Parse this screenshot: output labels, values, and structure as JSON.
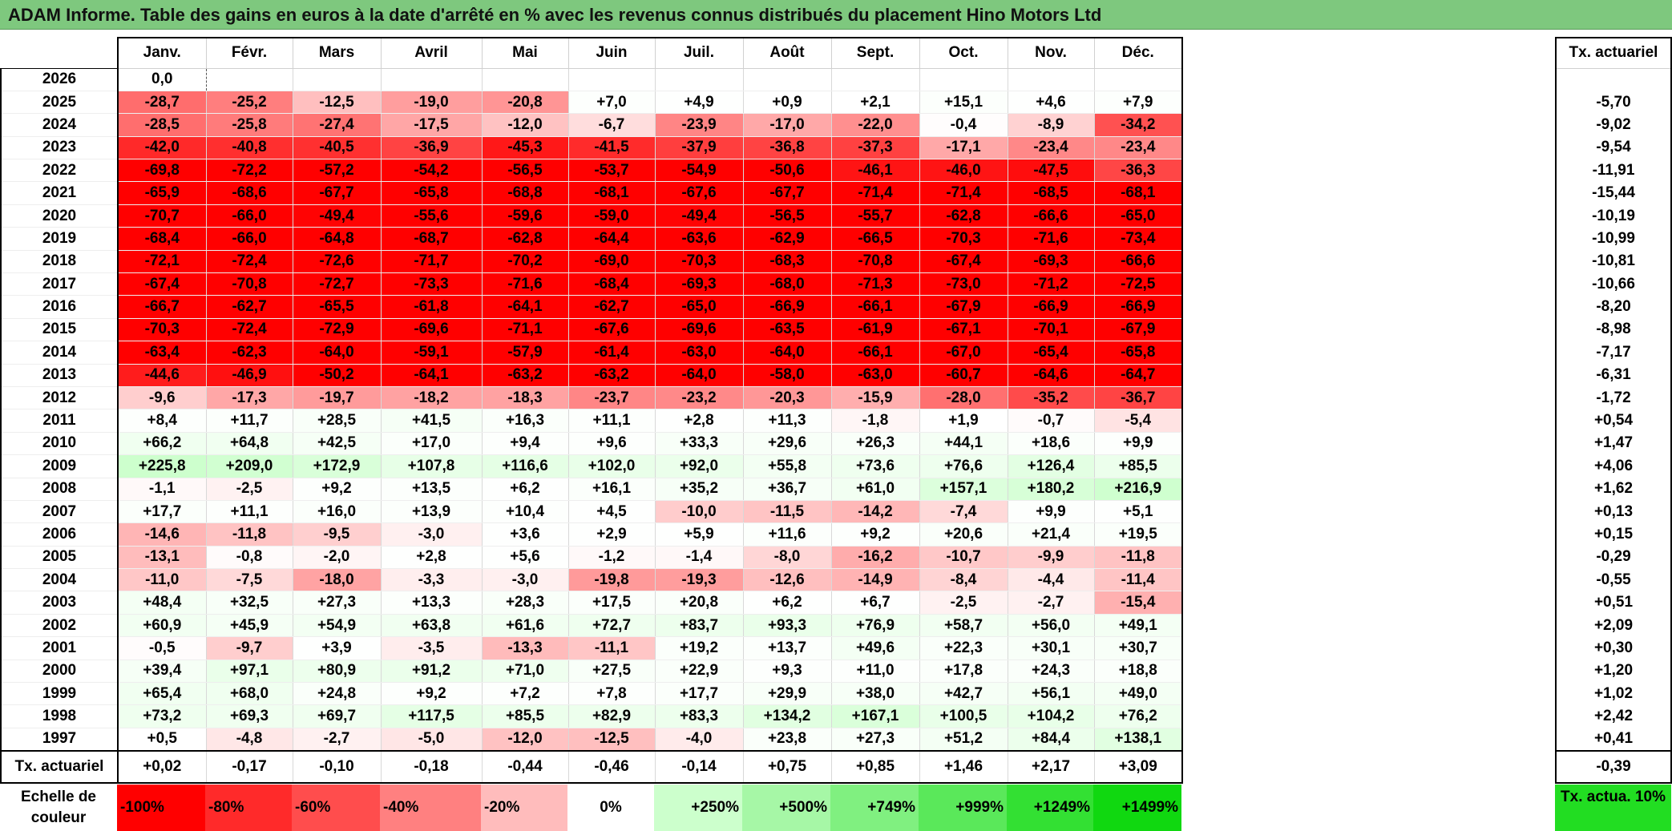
{
  "title": "ADAM Informe. Table des gains en euros à la date d'arrêté en % avec les revenus connus distribués du placement Hino Motors Ltd",
  "months": [
    "Janv.",
    "Févr.",
    "Mars",
    "Avril",
    "Mai",
    "Juin",
    "Juil.",
    "Août",
    "Sept.",
    "Oct.",
    "Nov.",
    "Déc."
  ],
  "side_header": "Tx. actuariel",
  "rows": [
    {
      "year": "2026",
      "values": [
        "0,0",
        "",
        "",
        "",
        "",
        "",
        "",
        "",
        "",
        "",
        "",
        ""
      ],
      "rate": ""
    },
    {
      "year": "2025",
      "values": [
        "-28,7",
        "-25,2",
        "-12,5",
        "-19,0",
        "-20,8",
        "+7,0",
        "+4,9",
        "+0,9",
        "+2,1",
        "+15,1",
        "+4,6",
        "+7,9"
      ],
      "rate": "-5,70"
    },
    {
      "year": "2024",
      "values": [
        "-28,5",
        "-25,8",
        "-27,4",
        "-17,5",
        "-12,0",
        "-6,7",
        "-23,9",
        "-17,0",
        "-22,0",
        "-0,4",
        "-8,9",
        "-34,2"
      ],
      "rate": "-9,02"
    },
    {
      "year": "2023",
      "values": [
        "-42,0",
        "-40,8",
        "-40,5",
        "-36,9",
        "-45,3",
        "-41,5",
        "-37,9",
        "-36,8",
        "-37,3",
        "-17,1",
        "-23,4",
        "-23,4"
      ],
      "rate": "-9,54"
    },
    {
      "year": "2022",
      "values": [
        "-69,8",
        "-72,2",
        "-57,2",
        "-54,2",
        "-56,5",
        "-53,7",
        "-54,9",
        "-50,6",
        "-46,1",
        "-46,0",
        "-47,5",
        "-36,3"
      ],
      "rate": "-11,91"
    },
    {
      "year": "2021",
      "values": [
        "-65,9",
        "-68,6",
        "-67,7",
        "-65,8",
        "-68,8",
        "-68,1",
        "-67,6",
        "-67,7",
        "-71,4",
        "-71,4",
        "-68,5",
        "-68,1"
      ],
      "rate": "-15,44"
    },
    {
      "year": "2020",
      "values": [
        "-70,7",
        "-66,0",
        "-49,4",
        "-55,6",
        "-59,6",
        "-59,0",
        "-49,4",
        "-56,5",
        "-55,7",
        "-62,8",
        "-66,6",
        "-65,0"
      ],
      "rate": "-10,19"
    },
    {
      "year": "2019",
      "values": [
        "-68,4",
        "-66,0",
        "-64,8",
        "-68,7",
        "-62,8",
        "-64,4",
        "-63,6",
        "-62,9",
        "-66,5",
        "-70,3",
        "-71,6",
        "-73,4"
      ],
      "rate": "-10,99"
    },
    {
      "year": "2018",
      "values": [
        "-72,1",
        "-72,4",
        "-72,6",
        "-71,7",
        "-70,2",
        "-69,0",
        "-70,3",
        "-68,3",
        "-70,8",
        "-67,4",
        "-69,3",
        "-66,6"
      ],
      "rate": "-10,81"
    },
    {
      "year": "2017",
      "values": [
        "-67,4",
        "-70,8",
        "-72,7",
        "-73,3",
        "-71,6",
        "-68,4",
        "-69,3",
        "-68,0",
        "-71,3",
        "-73,0",
        "-71,2",
        "-72,5"
      ],
      "rate": "-10,66"
    },
    {
      "year": "2016",
      "values": [
        "-66,7",
        "-62,7",
        "-65,5",
        "-61,8",
        "-64,1",
        "-62,7",
        "-65,0",
        "-66,9",
        "-66,1",
        "-67,9",
        "-66,9",
        "-66,9"
      ],
      "rate": "-8,20"
    },
    {
      "year": "2015",
      "values": [
        "-70,3",
        "-72,4",
        "-72,9",
        "-69,6",
        "-71,1",
        "-67,6",
        "-69,6",
        "-63,5",
        "-61,9",
        "-67,1",
        "-70,1",
        "-67,9"
      ],
      "rate": "-8,98"
    },
    {
      "year": "2014",
      "values": [
        "-63,4",
        "-62,3",
        "-64,0",
        "-59,1",
        "-57,9",
        "-61,4",
        "-63,0",
        "-64,0",
        "-66,1",
        "-67,0",
        "-65,4",
        "-65,8"
      ],
      "rate": "-7,17"
    },
    {
      "year": "2013",
      "values": [
        "-44,6",
        "-46,9",
        "-50,2",
        "-64,1",
        "-63,2",
        "-63,2",
        "-64,0",
        "-58,0",
        "-63,0",
        "-60,7",
        "-64,6",
        "-64,7"
      ],
      "rate": "-6,31"
    },
    {
      "year": "2012",
      "values": [
        "-9,6",
        "-17,3",
        "-19,7",
        "-18,2",
        "-18,3",
        "-23,7",
        "-23,2",
        "-20,3",
        "-15,9",
        "-28,0",
        "-35,2",
        "-36,7"
      ],
      "rate": "-1,72"
    },
    {
      "year": "2011",
      "values": [
        "+8,4",
        "+11,7",
        "+28,5",
        "+41,5",
        "+16,3",
        "+11,1",
        "+2,8",
        "+11,3",
        "-1,8",
        "+1,9",
        "-0,7",
        "-5,4"
      ],
      "rate": "+0,54"
    },
    {
      "year": "2010",
      "values": [
        "+66,2",
        "+64,8",
        "+42,5",
        "+17,0",
        "+9,4",
        "+9,6",
        "+33,3",
        "+29,6",
        "+26,3",
        "+44,1",
        "+18,6",
        "+9,9"
      ],
      "rate": "+1,47"
    },
    {
      "year": "2009",
      "values": [
        "+225,8",
        "+209,0",
        "+172,9",
        "+107,8",
        "+116,6",
        "+102,0",
        "+92,0",
        "+55,8",
        "+73,6",
        "+76,6",
        "+126,4",
        "+85,5"
      ],
      "rate": "+4,06"
    },
    {
      "year": "2008",
      "values": [
        "-1,1",
        "-2,5",
        "+9,2",
        "+13,5",
        "+6,2",
        "+16,1",
        "+35,2",
        "+36,7",
        "+61,0",
        "+157,1",
        "+180,2",
        "+216,9"
      ],
      "rate": "+1,62"
    },
    {
      "year": "2007",
      "values": [
        "+17,7",
        "+11,1",
        "+16,0",
        "+13,9",
        "+10,4",
        "+4,5",
        "-10,0",
        "-11,5",
        "-14,2",
        "-7,4",
        "+9,9",
        "+5,1"
      ],
      "rate": "+0,13"
    },
    {
      "year": "2006",
      "values": [
        "-14,6",
        "-11,8",
        "-9,5",
        "-3,0",
        "+3,6",
        "+2,9",
        "+5,9",
        "+11,6",
        "+9,2",
        "+20,6",
        "+21,4",
        "+19,5"
      ],
      "rate": "+0,15"
    },
    {
      "year": "2005",
      "values": [
        "-13,1",
        "-0,8",
        "-2,0",
        "+2,8",
        "+5,6",
        "-1,2",
        "-1,4",
        "-8,0",
        "-16,2",
        "-10,7",
        "-9,9",
        "-11,8"
      ],
      "rate": "-0,29"
    },
    {
      "year": "2004",
      "values": [
        "-11,0",
        "-7,5",
        "-18,0",
        "-3,3",
        "-3,0",
        "-19,8",
        "-19,3",
        "-12,6",
        "-14,9",
        "-8,4",
        "-4,4",
        "-11,4"
      ],
      "rate": "-0,55"
    },
    {
      "year": "2003",
      "values": [
        "+48,4",
        "+32,5",
        "+27,3",
        "+13,3",
        "+28,3",
        "+17,5",
        "+20,8",
        "+6,2",
        "+6,7",
        "-2,5",
        "-2,7",
        "-15,4"
      ],
      "rate": "+0,51"
    },
    {
      "year": "2002",
      "values": [
        "+60,9",
        "+45,9",
        "+54,9",
        "+63,8",
        "+61,6",
        "+72,7",
        "+83,7",
        "+93,3",
        "+76,9",
        "+58,7",
        "+56,0",
        "+49,1"
      ],
      "rate": "+2,09"
    },
    {
      "year": "2001",
      "values": [
        "-0,5",
        "-9,7",
        "+3,9",
        "-3,5",
        "-13,3",
        "-11,1",
        "+19,2",
        "+13,7",
        "+49,6",
        "+22,3",
        "+30,1",
        "+30,7"
      ],
      "rate": "+0,30"
    },
    {
      "year": "2000",
      "values": [
        "+39,4",
        "+97,1",
        "+80,9",
        "+91,2",
        "+71,0",
        "+27,5",
        "+22,9",
        "+9,3",
        "+11,0",
        "+17,8",
        "+24,3",
        "+18,8"
      ],
      "rate": "+1,20"
    },
    {
      "year": "1999",
      "values": [
        "+65,4",
        "+68,0",
        "+24,8",
        "+9,2",
        "+7,2",
        "+7,8",
        "+17,7",
        "+29,9",
        "+38,0",
        "+42,7",
        "+56,1",
        "+49,0"
      ],
      "rate": "+1,02"
    },
    {
      "year": "1998",
      "values": [
        "+73,2",
        "+69,3",
        "+69,7",
        "+117,5",
        "+85,5",
        "+82,9",
        "+83,3",
        "+134,2",
        "+167,1",
        "+100,5",
        "+104,2",
        "+76,2"
      ],
      "rate": "+2,42"
    },
    {
      "year": "1997",
      "values": [
        "+0,5",
        "-4,8",
        "-2,7",
        "-5,0",
        "-12,0",
        "-12,5",
        "-4,0",
        "+23,8",
        "+27,3",
        "+51,2",
        "+84,4",
        "+138,1"
      ],
      "rate": "+0,41"
    }
  ],
  "summary": {
    "label": "Tx. actuariel",
    "values": [
      "+0,02",
      "-0,17",
      "-0,10",
      "-0,18",
      "-0,44",
      "-0,46",
      "-0,14",
      "+0,75",
      "+0,85",
      "+1,46",
      "+2,17",
      "+3,09"
    ],
    "rate": "-0,39"
  },
  "scale": {
    "label": "Echelle de couleur",
    "items": [
      {
        "text": "-100%",
        "color": "#ff0000",
        "align": "left"
      },
      {
        "text": "-80%",
        "color": "#ff2a2a",
        "align": "left"
      },
      {
        "text": "-60%",
        "color": "#ff4d4d",
        "align": "left"
      },
      {
        "text": "-40%",
        "color": "#ff8080",
        "align": "left"
      },
      {
        "text": "-20%",
        "color": "#ffbcbc",
        "align": "left"
      },
      {
        "text": "0%",
        "color": "#ffffff",
        "align": "center"
      },
      {
        "text": "+250%",
        "color": "#ccffcc",
        "align": "right"
      },
      {
        "text": "+500%",
        "color": "#a6f7a6",
        "align": "right"
      },
      {
        "text": "+749%",
        "color": "#80f080",
        "align": "right"
      },
      {
        "text": "+999%",
        "color": "#5ae85a",
        "align": "right"
      },
      {
        "text": "+1249%",
        "color": "#33e033",
        "align": "right"
      },
      {
        "text": "+1499%",
        "color": "#10d810",
        "align": "right"
      }
    ],
    "badge": "Tx. actua. 10%",
    "badge_color": "#22dd22"
  },
  "colors": {
    "title_bar": "#7ec87e"
  }
}
